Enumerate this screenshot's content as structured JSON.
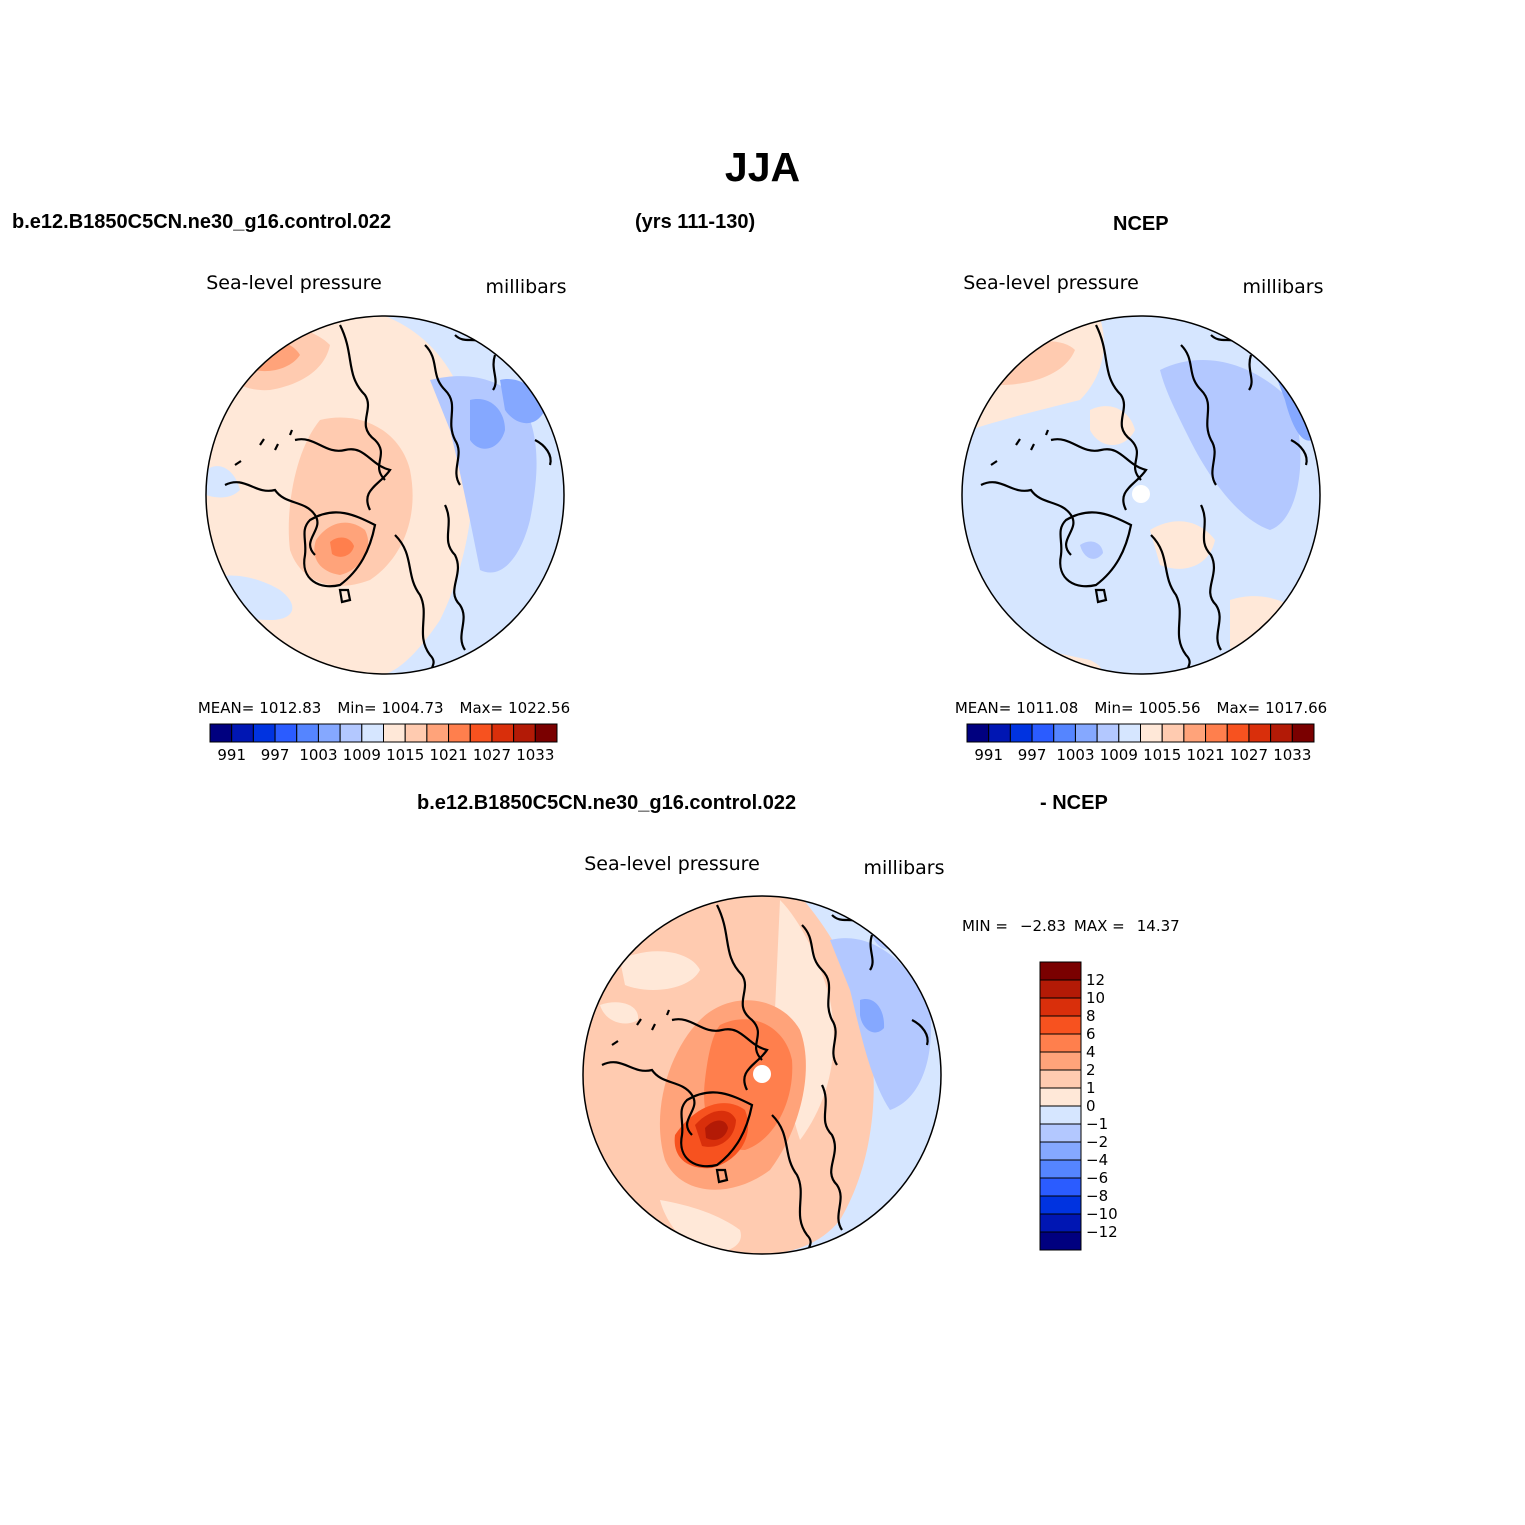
{
  "figure": {
    "title": "JJA",
    "case_name": "b.e12.B1850C5CN.ne30_g16.control.022",
    "years": "(yrs 111-130)",
    "obs_name": "NCEP",
    "diff_case": "b.e12.B1850C5CN.ne30_g16.control.022",
    "diff_obs": "- NCEP"
  },
  "colors": {
    "abs_scale": [
      "#00007f",
      "#0016b3",
      "#0033e0",
      "#2b5cff",
      "#5585ff",
      "#85a8ff",
      "#b3c8ff",
      "#d6e6ff",
      "#ffe8d8",
      "#ffcbb0",
      "#ffa37a",
      "#ff7f4d",
      "#f7521f",
      "#d92f0b",
      "#b31a06",
      "#7a0000"
    ],
    "diff_scale": [
      "#00007f",
      "#0016b3",
      "#0033e0",
      "#2b5cff",
      "#5585ff",
      "#85a8ff",
      "#b3c8ff",
      "#d6e6ff",
      "#ffe8d8",
      "#ffcbb0",
      "#ffa37a",
      "#ff7f4d",
      "#f7521f",
      "#d92f0b",
      "#b31a06",
      "#7a0000"
    ]
  },
  "chart_data": [
    {
      "type": "heatmap",
      "panel": "model",
      "title": "Sea-level pressure",
      "units": "millibars",
      "stats": {
        "mean_label": "MEAN=",
        "mean": "1012.83",
        "min_label": "Min=",
        "min": "1004.73",
        "max_label": "Max=",
        "max": "1022.56"
      },
      "colorbar_ticks": [
        "991",
        "997",
        "1003",
        "1009",
        "1015",
        "1021",
        "1027",
        "1033"
      ]
    },
    {
      "type": "heatmap",
      "panel": "obs",
      "title": "Sea-level pressure",
      "units": "millibars",
      "stats": {
        "mean_label": "MEAN=",
        "mean": "1011.08",
        "min_label": "Min=",
        "min": "1005.56",
        "max_label": "Max=",
        "max": "1017.66"
      },
      "colorbar_ticks": [
        "991",
        "997",
        "1003",
        "1009",
        "1015",
        "1021",
        "1027",
        "1033"
      ]
    },
    {
      "type": "heatmap",
      "panel": "difference",
      "title": "Sea-level pressure",
      "units": "millibars",
      "stats": {
        "min_label": "MIN =",
        "min": "−2.83",
        "max_label": "MAX =",
        "max": "14.37"
      },
      "colorbar_ticks": [
        "12",
        "10",
        "8",
        "6",
        "4",
        "2",
        "1",
        "0",
        "−1",
        "−2",
        "−4",
        "−6",
        "−8",
        "−10",
        "−12"
      ]
    }
  ]
}
